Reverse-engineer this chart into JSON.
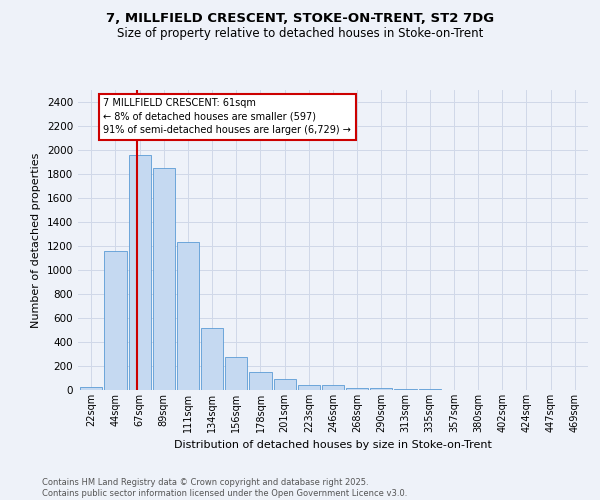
{
  "title_line1": "7, MILLFIELD CRESCENT, STOKE-ON-TRENT, ST2 7DG",
  "title_line2": "Size of property relative to detached houses in Stoke-on-Trent",
  "xlabel": "Distribution of detached houses by size in Stoke-on-Trent",
  "ylabel": "Number of detached properties",
  "categories": [
    "22sqm",
    "44sqm",
    "67sqm",
    "89sqm",
    "111sqm",
    "134sqm",
    "156sqm",
    "178sqm",
    "201sqm",
    "223sqm",
    "246sqm",
    "268sqm",
    "290sqm",
    "313sqm",
    "335sqm",
    "357sqm",
    "380sqm",
    "402sqm",
    "424sqm",
    "447sqm",
    "469sqm"
  ],
  "values": [
    25,
    1160,
    1960,
    1850,
    1230,
    520,
    275,
    150,
    90,
    40,
    40,
    15,
    20,
    5,
    5,
    2,
    2,
    2,
    0,
    2,
    0
  ],
  "bar_color": "#c5d9f1",
  "bar_edge_color": "#5b9bd5",
  "grid_color": "#d0d8e8",
  "annotation_text": "7 MILLFIELD CRESCENT: 61sqm\n← 8% of detached houses are smaller (597)\n91% of semi-detached houses are larger (6,729) →",
  "annotation_box_color": "#ffffff",
  "annotation_box_edge": "#cc0000",
  "vline_color": "#cc0000",
  "ylim": [
    0,
    2500
  ],
  "yticks": [
    0,
    200,
    400,
    600,
    800,
    1000,
    1200,
    1400,
    1600,
    1800,
    2000,
    2200,
    2400
  ],
  "footer_line1": "Contains HM Land Registry data © Crown copyright and database right 2025.",
  "footer_line2": "Contains public sector information licensed under the Open Government Licence v3.0.",
  "background_color": "#eef2f9"
}
